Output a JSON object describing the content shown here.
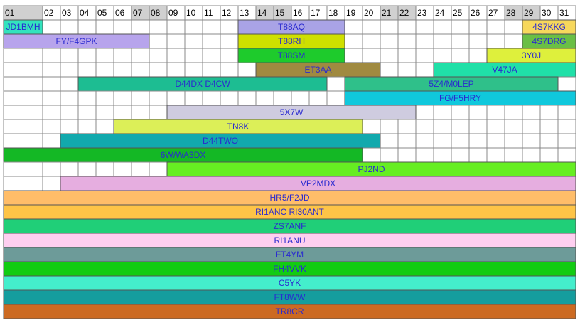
{
  "calendar": {
    "days": [
      "01",
      "02",
      "03",
      "04",
      "05",
      "06",
      "07",
      "08",
      "09",
      "10",
      "11",
      "12",
      "13",
      "14",
      "15",
      "16",
      "17",
      "18",
      "19",
      "20",
      "21",
      "22",
      "23",
      "24",
      "25",
      "26",
      "27",
      "28",
      "29",
      "30",
      "31"
    ],
    "weekend_days": [
      "01",
      "07",
      "08",
      "14",
      "15",
      "21",
      "22",
      "28",
      "29"
    ],
    "rows": [
      [
        {
          "label": "JD1BMH",
          "from": "01",
          "to": "01",
          "color": "#33e3bd"
        },
        {
          "label": "T88AQ",
          "from": "13",
          "to": "18",
          "color": "#a9a3e6"
        },
        {
          "label": "4S7KKG",
          "from": "29",
          "to": "31",
          "color": "#f7d85c"
        }
      ],
      [
        {
          "label": "FY/F4GPK",
          "from": "01",
          "to": "07",
          "color": "#b7a4ec"
        },
        {
          "label": "T88RH",
          "from": "13",
          "to": "18",
          "color": "#cfe000"
        },
        {
          "label": "4S7DRG",
          "from": "29",
          "to": "31",
          "color": "#6abf45"
        }
      ],
      [
        {
          "label": "T88SM",
          "from": "13",
          "to": "18",
          "color": "#1ecb2c"
        },
        {
          "label": "3Y0J",
          "from": "27",
          "to": "31",
          "color": "#def03c"
        }
      ],
      [
        {
          "label": "ET3AA",
          "from": "14",
          "to": "20",
          "color": "#a08a40"
        },
        {
          "label": "V47JA",
          "from": "24",
          "to": "31",
          "color": "#20e0a8"
        }
      ],
      [
        {
          "label": "D44DX D4CW",
          "from": "04",
          "to": "17",
          "color": "#1dbd92"
        },
        {
          "label": "5Z4/M0LEP",
          "from": "19",
          "to": "30",
          "color": "#2fc08a"
        }
      ],
      [
        {
          "label": "FG/F5HRY",
          "from": "19",
          "to": "31",
          "color": "#10c8dc"
        }
      ],
      [
        {
          "label": "5X7W",
          "from": "09",
          "to": "22",
          "color": "#cfcce0"
        }
      ],
      [
        {
          "label": "TN8K",
          "from": "06",
          "to": "19",
          "color": "#dcef58"
        }
      ],
      [
        {
          "label": "D44TWO",
          "from": "03",
          "to": "20",
          "color": "#12a9ad"
        }
      ],
      [
        {
          "label": "6W/WA3DX",
          "from": "01",
          "to": "19",
          "color": "#14b825"
        }
      ],
      [
        {
          "label": "PJ2ND",
          "from": "09",
          "to": "31",
          "color": "#66ee22"
        }
      ],
      [
        {
          "label": "VP2MDX",
          "from": "03",
          "to": "31",
          "color": "#e6aee0"
        }
      ],
      [
        {
          "label": "HR5/F2JD",
          "from": "01",
          "to": "31",
          "color": "#ffbd69"
        }
      ],
      [
        {
          "label": "RI1ANC RI30ANT",
          "from": "01",
          "to": "31",
          "color": "#fec447"
        }
      ],
      [
        {
          "label": "ZS7ANF",
          "from": "01",
          "to": "31",
          "color": "#20cf78"
        }
      ],
      [
        {
          "label": "RI1ANU",
          "from": "01",
          "to": "31",
          "color": "#fecff0"
        }
      ],
      [
        {
          "label": "FT4YM",
          "from": "01",
          "to": "31",
          "color": "#6d9b99"
        }
      ],
      [
        {
          "label": "FH4VVK",
          "from": "01",
          "to": "31",
          "color": "#12cc12"
        }
      ],
      [
        {
          "label": "C5YK",
          "from": "01",
          "to": "31",
          "color": "#44eecc"
        }
      ],
      [
        {
          "label": "FT8WW",
          "from": "01",
          "to": "31",
          "color": "#159d9e"
        }
      ],
      [
        {
          "label": "TR8CR",
          "from": "01",
          "to": "31",
          "color": "#cc6a22"
        }
      ]
    ]
  }
}
